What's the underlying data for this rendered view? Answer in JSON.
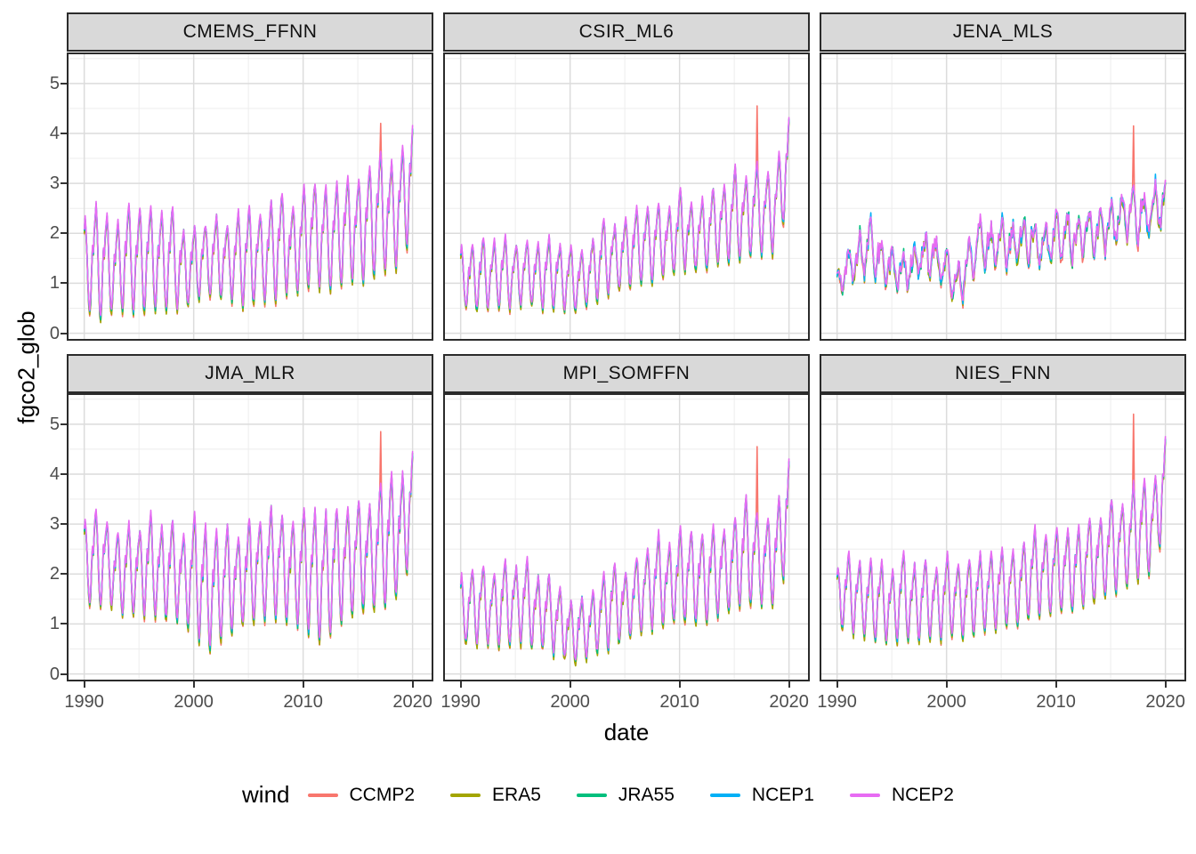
{
  "chart_data": {
    "type": "line",
    "title": "",
    "xlabel": "date",
    "ylabel": "fgco2_glob",
    "x_tick_labels": [
      "1990",
      "2000",
      "2010",
      "2020"
    ],
    "x_tick_years": [
      1990,
      2000,
      2010,
      2020
    ],
    "x_minor_years": [
      1995,
      2005,
      2015
    ],
    "y_tick_labels": [
      "0",
      "1",
      "2",
      "3",
      "4",
      "5"
    ],
    "y_tick_values": [
      0,
      1,
      2,
      3,
      4,
      5
    ],
    "y_minor_values": [
      0.5,
      1.5,
      2.5,
      3.5,
      4.5,
      5.5
    ],
    "x_domain": [
      1988.4,
      2021.9
    ],
    "y_domain": [
      -0.15,
      5.62
    ],
    "grid": true,
    "legend": {
      "title": "wind",
      "position": "bottom"
    },
    "sampling": {
      "start_year": 1990,
      "end_year": 2020,
      "points_per_year": 12
    },
    "seasonal_template": [
      0.82,
      1.0,
      0.72,
      0.15,
      -0.45,
      -0.85,
      -1.0,
      -0.72,
      -0.18,
      0.28,
      0.12,
      0.55
    ],
    "series": [
      {
        "name": "CCMP2",
        "color": "#F8766D",
        "peak_scale": 0.97,
        "trough_scale": 1.1,
        "offset": -0.02
      },
      {
        "name": "ERA5",
        "color": "#A3A500",
        "peak_scale": 0.96,
        "trough_scale": 1.07,
        "offset": -0.03
      },
      {
        "name": "JRA55",
        "color": "#00BF7D",
        "peak_scale": 1.01,
        "trough_scale": 1.04,
        "offset": 0.0
      },
      {
        "name": "NCEP1",
        "color": "#00B0F6",
        "peak_scale": 0.99,
        "trough_scale": 1.01,
        "offset": 0.01
      },
      {
        "name": "NCEP2",
        "color": "#E76BF3",
        "peak_scale": 1.03,
        "trough_scale": 1.0,
        "offset": 0.02
      }
    ],
    "spike_note": "single-month CCMP2 spike in Feb 2017 (month_index 325 from Jan 1990)",
    "facets": [
      {
        "name": "CMEMS_FFNN",
        "noise": 0.05,
        "annual_mean": [
          1.45,
          1.4,
          1.38,
          1.3,
          1.55,
          1.45,
          1.55,
          1.45,
          1.5,
          1.3,
          1.35,
          1.5,
          1.5,
          1.45,
          1.5,
          1.5,
          1.55,
          1.6,
          1.8,
          1.65,
          1.9,
          2.0,
          1.9,
          1.95,
          2.1,
          2.05,
          2.2,
          2.45,
          2.3,
          2.55,
          3.2
        ],
        "annual_amp": [
          0.8,
          1.15,
          1.0,
          0.85,
          1.05,
          1.05,
          1.0,
          0.95,
          1.05,
          0.7,
          0.75,
          0.65,
          0.85,
          0.65,
          0.9,
          1.0,
          0.8,
          1.0,
          1.0,
          0.8,
          1.0,
          1.0,
          1.0,
          1.0,
          1.0,
          1.0,
          1.1,
          1.2,
          1.05,
          1.1,
          1.1
        ],
        "spike_month_index": 325,
        "spike_value": 4.2,
        "end_peak": 4.15
      },
      {
        "name": "CSIR_ML6",
        "noise": 0.05,
        "annual_mean": [
          1.15,
          1.1,
          1.2,
          1.18,
          1.2,
          1.15,
          1.23,
          1.15,
          1.2,
          1.15,
          1.05,
          1.08,
          1.23,
          1.53,
          1.5,
          1.6,
          1.73,
          1.78,
          1.85,
          1.8,
          2.08,
          1.95,
          1.95,
          2.15,
          2.18,
          2.4,
          2.3,
          2.53,
          2.38,
          2.6,
          3.6
        ],
        "annual_amp": [
          0.55,
          0.65,
          0.7,
          0.63,
          0.7,
          0.6,
          0.63,
          0.6,
          0.7,
          0.6,
          0.7,
          0.53,
          0.63,
          0.78,
          0.6,
          0.7,
          0.73,
          0.73,
          0.75,
          0.65,
          0.78,
          0.65,
          0.7,
          0.75,
          0.73,
          0.9,
          0.8,
          0.88,
          0.83,
          0.9,
          0.85
        ],
        "spike_month_index": 325,
        "spike_value": 4.55,
        "end_peak": 4.35
      },
      {
        "name": "JENA_MLS",
        "noise": 0.14,
        "annual_mean": [
          1.05,
          1.25,
          1.55,
          1.8,
          1.4,
          1.3,
          1.15,
          1.35,
          1.6,
          1.5,
          1.3,
          0.95,
          1.4,
          1.8,
          1.7,
          1.8,
          1.75,
          1.9,
          1.8,
          1.7,
          1.95,
          1.95,
          1.9,
          2.0,
          2.05,
          2.1,
          2.3,
          2.45,
          2.3,
          2.5,
          2.65
        ],
        "annual_amp": [
          0.3,
          0.35,
          0.4,
          0.5,
          0.35,
          0.3,
          0.35,
          0.3,
          0.35,
          0.35,
          0.35,
          0.45,
          0.45,
          0.45,
          0.4,
          0.45,
          0.4,
          0.4,
          0.4,
          0.35,
          0.45,
          0.4,
          0.4,
          0.4,
          0.4,
          0.4,
          0.45,
          0.5,
          0.45,
          0.5,
          0.4
        ],
        "spike_month_index": 325,
        "spike_value": 4.15,
        "end_peak": 3.0
      },
      {
        "name": "JMA_MLR",
        "noise": 0.06,
        "annual_mean": [
          2.25,
          2.33,
          2.28,
          2.0,
          2.15,
          1.98,
          2.25,
          1.98,
          2.13,
          1.9,
          2.05,
          1.68,
          1.68,
          1.88,
          1.83,
          2.08,
          2.08,
          2.23,
          2.2,
          1.98,
          2.2,
          1.98,
          1.95,
          2.18,
          2.23,
          2.4,
          2.3,
          2.58,
          2.73,
          2.78,
          3.55
        ],
        "annual_amp": [
          0.8,
          0.98,
          0.78,
          0.8,
          0.85,
          0.88,
          0.95,
          0.93,
          0.93,
          0.85,
          1.15,
          1.23,
          1.13,
          1.08,
          0.88,
          1.03,
          0.98,
          1.08,
          1.0,
          1.03,
          1.1,
          1.28,
          1.25,
          1.13,
          1.08,
          1.1,
          1.0,
          1.23,
          1.23,
          1.13,
          1.0
        ],
        "spike_month_index": 325,
        "spike_value": 4.85,
        "end_peak": 4.4
      },
      {
        "name": "MPI_SOMFFN",
        "noise": 0.06,
        "annual_mean": [
          1.28,
          1.35,
          1.4,
          1.28,
          1.43,
          1.4,
          1.45,
          1.23,
          1.25,
          1.03,
          0.85,
          0.88,
          1.0,
          1.25,
          1.4,
          1.35,
          1.55,
          1.7,
          1.9,
          1.75,
          2.0,
          1.95,
          1.9,
          2.05,
          2.05,
          2.2,
          2.45,
          2.33,
          2.25,
          2.45,
          3.45
        ],
        "annual_amp": [
          0.63,
          0.75,
          0.75,
          0.68,
          0.88,
          0.7,
          0.85,
          0.68,
          0.75,
          0.68,
          0.55,
          0.63,
          0.6,
          0.75,
          0.8,
          0.65,
          0.75,
          0.8,
          0.9,
          0.75,
          0.9,
          0.9,
          0.9,
          0.85,
          0.85,
          0.9,
          1.05,
          0.88,
          0.85,
          0.95,
          1.0
        ],
        "spike_month_index": 325,
        "spike_value": 4.55,
        "end_peak": 4.3
      },
      {
        "name": "NIES_FNN",
        "noise": 0.05,
        "annual_mean": [
          1.55,
          1.63,
          1.53,
          1.45,
          1.48,
          1.33,
          1.6,
          1.4,
          1.53,
          1.4,
          1.58,
          1.5,
          1.5,
          1.63,
          1.65,
          1.73,
          1.73,
          1.83,
          2.05,
          1.98,
          2.1,
          2.05,
          2.1,
          2.28,
          2.3,
          2.55,
          2.55,
          2.83,
          2.95,
          2.98,
          4.0
        ],
        "annual_amp": [
          0.55,
          0.78,
          0.68,
          0.8,
          0.73,
          0.73,
          0.9,
          0.75,
          0.78,
          0.7,
          0.83,
          0.7,
          0.8,
          0.78,
          0.75,
          0.78,
          0.73,
          0.78,
          0.85,
          0.78,
          0.8,
          0.8,
          0.8,
          0.83,
          0.8,
          0.95,
          0.85,
          0.93,
          0.95,
          0.88,
          0.9
        ],
        "spike_month_index": 325,
        "spike_value": 5.2,
        "end_peak": 4.8
      }
    ]
  },
  "style": {
    "strip_bg": "#d9d9d9",
    "panel_border": "#2b2b2b",
    "grid_major": "#dcdcdc",
    "grid_minor": "#ededed",
    "axis_text_color": "#4d4d4d",
    "text_color": "#000000",
    "background": "#ffffff",
    "line_width": 1.6
  }
}
